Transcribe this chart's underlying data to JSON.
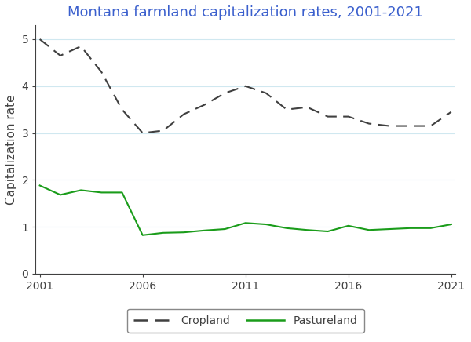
{
  "title": "Montana farmland capitalization rates, 2001-2021",
  "ylabel": "Capitalization rate",
  "years": [
    2001,
    2002,
    2003,
    2004,
    2005,
    2006,
    2007,
    2008,
    2009,
    2010,
    2011,
    2012,
    2013,
    2014,
    2015,
    2016,
    2017,
    2018,
    2019,
    2020,
    2021
  ],
  "cropland": [
    5.0,
    4.65,
    4.85,
    4.3,
    3.5,
    3.0,
    3.05,
    3.4,
    3.6,
    3.85,
    4.0,
    3.85,
    3.5,
    3.55,
    3.35,
    3.35,
    3.2,
    3.15,
    3.15,
    3.15,
    3.45
  ],
  "pastureland": [
    1.88,
    1.68,
    1.78,
    1.73,
    1.73,
    0.82,
    0.87,
    0.88,
    0.92,
    0.95,
    1.08,
    1.05,
    0.97,
    0.93,
    0.9,
    1.02,
    0.93,
    0.95,
    0.97,
    0.97,
    1.05
  ],
  "cropland_color": "#404040",
  "pastureland_color": "#1a9c1a",
  "title_color": "#3a5fcd",
  "ylabel_color": "#404040",
  "ylim": [
    0,
    5.3
  ],
  "xlim_min": 2001,
  "xlim_max": 2021,
  "xticks": [
    2001,
    2006,
    2011,
    2016,
    2021
  ],
  "yticks": [
    0,
    1,
    2,
    3,
    4,
    5
  ],
  "grid_color": "#d0e8f0",
  "background_color": "#ffffff",
  "title_fontsize": 13,
  "axis_label_fontsize": 11,
  "tick_fontsize": 10,
  "legend_labels": [
    "Cropland",
    "Pastureland"
  ],
  "legend_text_color": "#404040"
}
